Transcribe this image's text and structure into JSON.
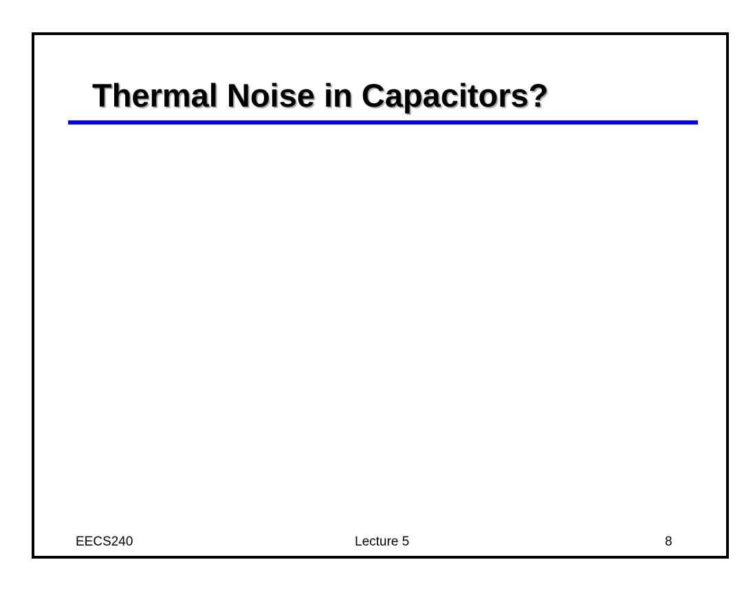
{
  "slide": {
    "title": "Thermal Noise in Capacitors?",
    "accent_color": "#0000ee",
    "footer": {
      "left": "EECS240",
      "center": "Lecture 5",
      "right": "8"
    }
  }
}
